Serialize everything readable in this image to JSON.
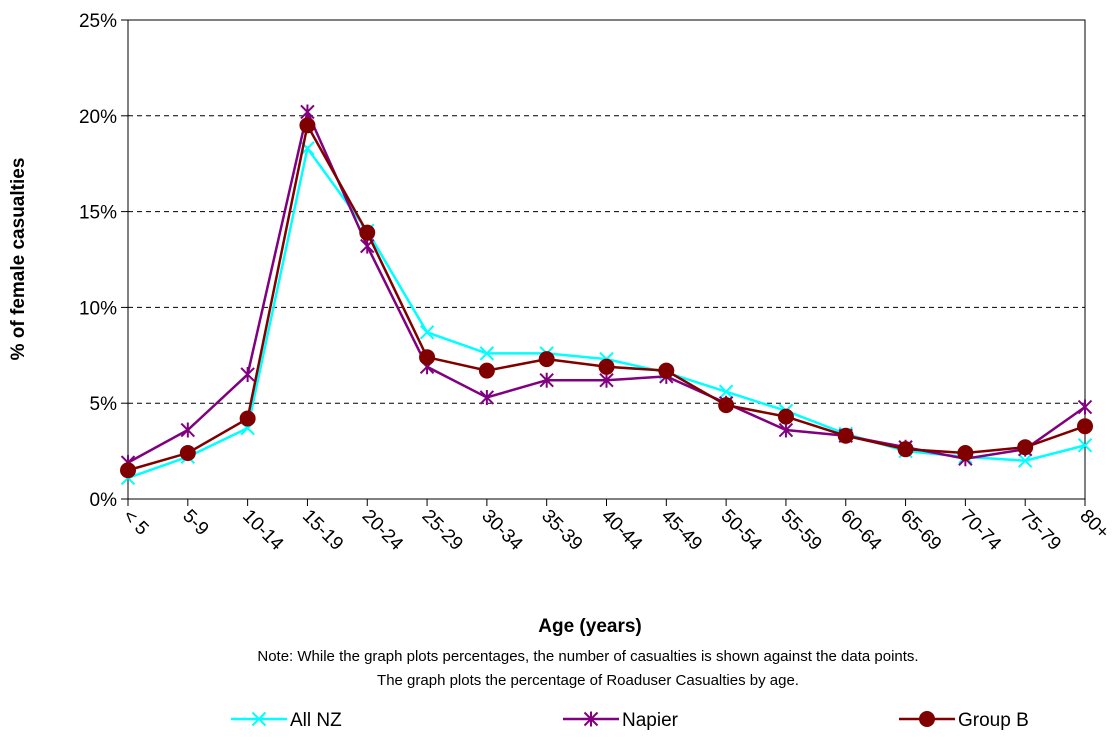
{
  "chart_data": {
    "type": "line",
    "title": "",
    "xlabel": "Age (years)",
    "ylabel": "% of female casualties",
    "categories": [
      "< 5",
      "5-9",
      "10-14",
      "15-19",
      "20-24",
      "25-29",
      "30-34",
      "35-39",
      "40-44",
      "45-49",
      "50-54",
      "55-59",
      "60-64",
      "65-69",
      "70-74",
      "75-79",
      "80+"
    ],
    "y_ticks": [
      "0%",
      "5%",
      "10%",
      "15%",
      "20%",
      "25%"
    ],
    "ylim": [
      0,
      25
    ],
    "grid": true,
    "legend_position": "bottom",
    "series": [
      {
        "name": "All NZ",
        "color": "#00FFFF",
        "marker": "x",
        "values": [
          1.1,
          2.2,
          3.7,
          18.3,
          14.0,
          8.7,
          7.6,
          7.6,
          7.3,
          6.6,
          5.6,
          4.6,
          3.4,
          2.5,
          2.2,
          2.0,
          2.8
        ]
      },
      {
        "name": "Napier",
        "color": "#800080",
        "marker": "star",
        "values": [
          1.9,
          3.6,
          6.5,
          20.2,
          13.2,
          6.9,
          5.3,
          6.2,
          6.2,
          6.4,
          5.0,
          3.6,
          3.3,
          2.7,
          2.1,
          2.6,
          4.8
        ]
      },
      {
        "name": "Group B",
        "color": "#800000",
        "marker": "circle",
        "values": [
          1.5,
          2.4,
          4.2,
          19.5,
          13.9,
          7.4,
          6.7,
          7.3,
          6.9,
          6.7,
          4.9,
          4.3,
          3.3,
          2.6,
          2.4,
          2.7,
          3.8
        ]
      }
    ],
    "notes": [
      "Note: While the graph plots percentages, the number of casualties is shown against the  data points.",
      "The graph plots the percentage of Roaduser Casualties by age."
    ]
  }
}
